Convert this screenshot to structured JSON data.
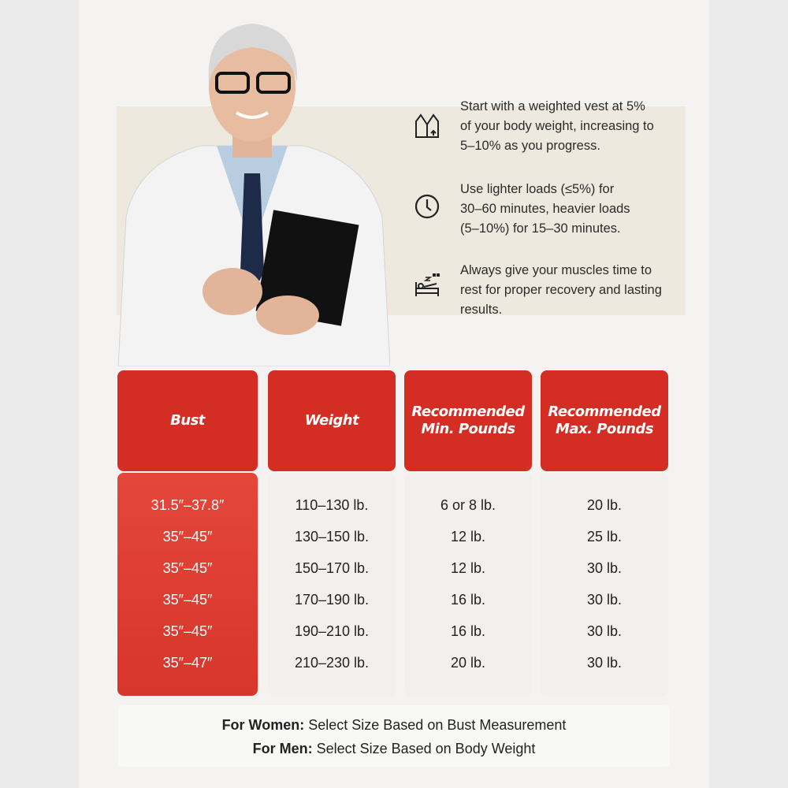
{
  "tips": [
    {
      "icon": "weighted-vest-icon",
      "lines": [
        "Start with a weighted vest at 5%",
        "of your body weight, increasing to",
        "5–10% as you progress."
      ]
    },
    {
      "icon": "clock-icon",
      "lines": [
        "Use lighter loads (≤5%) for",
        "30–60 minutes, heavier loads",
        "(5–10%) for 15–30 minutes."
      ]
    },
    {
      "icon": "rest-bed-icon",
      "lines": [
        "Always give your muscles time to",
        "rest for proper recovery and lasting",
        "results."
      ]
    }
  ],
  "table": {
    "headers": [
      "Bust",
      "Weight",
      "Recommended Min. Pounds",
      "Recommended Max. Pounds"
    ],
    "bust": [
      "31.5″–37.8″",
      "35″–45″",
      "35″–45″",
      "35″–45″",
      "35″–45″",
      "35″–47″"
    ],
    "weight": [
      "110–130 lb.",
      "130–150 lb.",
      "150–170 lb.",
      "170–190 lb.",
      "190–210 lb.",
      "210–230 lb."
    ],
    "min": [
      "6 or 8 lb.",
      "12 lb.",
      "12 lb.",
      "16 lb.",
      "16 lb.",
      "20 lb."
    ],
    "max": [
      "20 lb.",
      "25 lb.",
      "30 lb.",
      "30 lb.",
      "30 lb.",
      "30 lb."
    ]
  },
  "footer": {
    "women_label": "For Women:",
    "women_text": " Select Size Based on Bust Measurement",
    "men_label": "For Men:",
    "men_text": " Select Size Based on Body Weight"
  },
  "colors": {
    "accent": "#d42e24",
    "accent_light": "#e4473a"
  }
}
